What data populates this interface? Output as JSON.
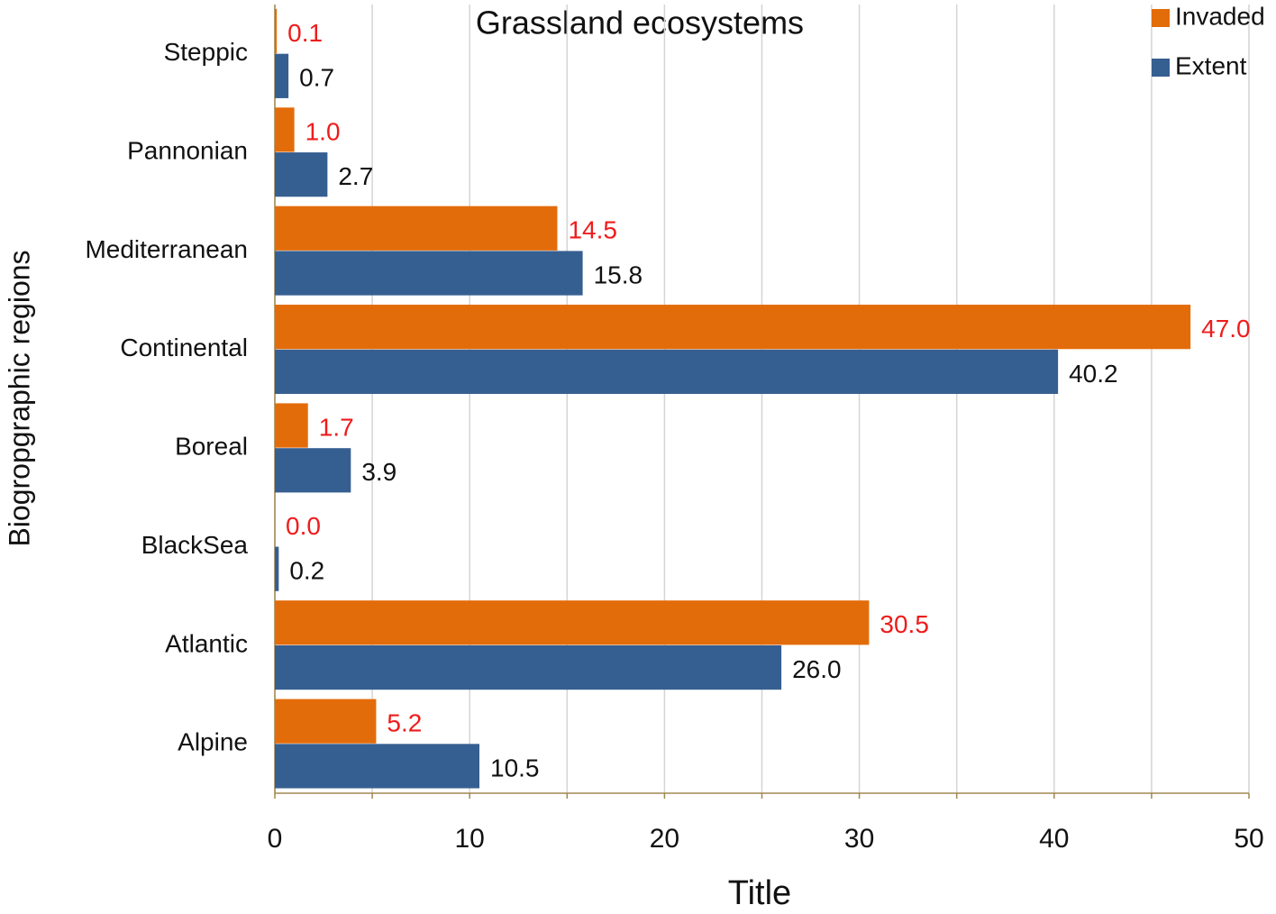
{
  "chart_data": {
    "type": "hbar",
    "title": "Grassland ecosystems",
    "x_label": "Title",
    "y_label": "Biogropgraphic regions",
    "categories": [
      "Steppic",
      "Pannonian",
      "Mediterranean",
      "Continental",
      "Boreal",
      "BlackSea",
      "Atlantic",
      "Alpine"
    ],
    "series": [
      {
        "name": "Invaded",
        "color": "#e36c0a",
        "label_color": "#ee1c1c",
        "values": [
          0.1,
          1,
          14.5,
          47,
          1.7,
          0,
          30.5,
          5.2
        ],
        "value_labels": [
          "0.1",
          "1.0",
          "14.5",
          "47.0",
          "1.7",
          "0.0",
          "30.5",
          "5.2"
        ]
      },
      {
        "name": "Extent",
        "color": "#365f91",
        "label_color": "#111111",
        "values": [
          0.7,
          2.7,
          15.8,
          40.2,
          3.9,
          0.2,
          26,
          10.5
        ],
        "value_labels": [
          "0.7",
          "2.7",
          "15.8",
          "40.2",
          "3.9",
          "0.2",
          "26.0",
          "10.5"
        ]
      }
    ],
    "xlim": [
      0,
      50
    ],
    "xticks": [
      0,
      10,
      20,
      30,
      40,
      50
    ],
    "x_minor_ticks": [
      5,
      15,
      25,
      35,
      45
    ],
    "grid": true,
    "legend": "top-right"
  }
}
